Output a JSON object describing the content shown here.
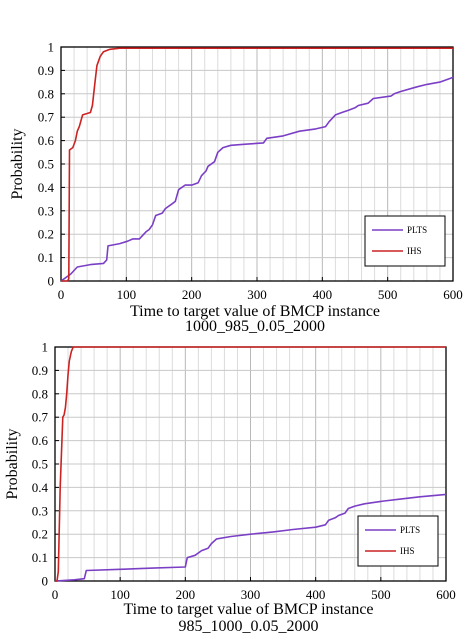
{
  "chart_data": [
    {
      "type": "line",
      "ylabel": "Probability",
      "xlabel_line1": "Time to target value of BMCP instance",
      "xlabel_line2": "1000_985_0.05_2000",
      "xlim": [
        0,
        600
      ],
      "ylim": [
        0,
        1
      ],
      "xticks": [
        0,
        100,
        200,
        300,
        400,
        500,
        600
      ],
      "yticks": [
        0,
        0.1,
        0.2,
        0.3,
        0.4,
        0.5,
        0.6,
        0.7,
        0.8,
        0.9,
        1
      ],
      "grid": true,
      "legend": "bottom-right",
      "series": [
        {
          "name": "PLTS",
          "color": "#7b3fc6",
          "points": [
            [
              0,
              0
            ],
            [
              5,
              0.01
            ],
            [
              15,
              0.03
            ],
            [
              25,
              0.06
            ],
            [
              45,
              0.07
            ],
            [
              65,
              0.075
            ],
            [
              70,
              0.09
            ],
            [
              72,
              0.15
            ],
            [
              90,
              0.16
            ],
            [
              102,
              0.17
            ],
            [
              110,
              0.18
            ],
            [
              120,
              0.18
            ],
            [
              130,
              0.21
            ],
            [
              135,
              0.22
            ],
            [
              140,
              0.24
            ],
            [
              145,
              0.28
            ],
            [
              155,
              0.29
            ],
            [
              160,
              0.31
            ],
            [
              170,
              0.33
            ],
            [
              175,
              0.34
            ],
            [
              180,
              0.39
            ],
            [
              190,
              0.41
            ],
            [
              200,
              0.41
            ],
            [
              210,
              0.42
            ],
            [
              215,
              0.45
            ],
            [
              222,
              0.47
            ],
            [
              225,
              0.49
            ],
            [
              235,
              0.51
            ],
            [
              240,
              0.55
            ],
            [
              248,
              0.57
            ],
            [
              260,
              0.58
            ],
            [
              285,
              0.585
            ],
            [
              310,
              0.59
            ],
            [
              315,
              0.61
            ],
            [
              340,
              0.62
            ],
            [
              365,
              0.64
            ],
            [
              390,
              0.65
            ],
            [
              405,
              0.66
            ],
            [
              410,
              0.68
            ],
            [
              420,
              0.71
            ],
            [
              430,
              0.72
            ],
            [
              440,
              0.73
            ],
            [
              450,
              0.74
            ],
            [
              455,
              0.75
            ],
            [
              470,
              0.76
            ],
            [
              478,
              0.78
            ],
            [
              505,
              0.79
            ],
            [
              510,
              0.8
            ],
            [
              520,
              0.81
            ],
            [
              545,
              0.83
            ],
            [
              560,
              0.84
            ],
            [
              580,
              0.85
            ],
            [
              600,
              0.87
            ]
          ]
        },
        {
          "name": "IHS",
          "color": "#cc2222",
          "points": [
            [
              0,
              0
            ],
            [
              10,
              0
            ],
            [
              12,
              0.01
            ],
            [
              13,
              0.56
            ],
            [
              18,
              0.57
            ],
            [
              22,
              0.6
            ],
            [
              25,
              0.64
            ],
            [
              28,
              0.66
            ],
            [
              33,
              0.71
            ],
            [
              45,
              0.72
            ],
            [
              48,
              0.75
            ],
            [
              52,
              0.85
            ],
            [
              55,
              0.92
            ],
            [
              60,
              0.96
            ],
            [
              65,
              0.98
            ],
            [
              75,
              0.99
            ],
            [
              90,
              0.995
            ],
            [
              600,
              0.995
            ]
          ]
        }
      ]
    },
    {
      "type": "line",
      "ylabel": "Probability",
      "xlabel_line1": "Time to target value of BMCP instance",
      "xlabel_line2": "985_1000_0.05_2000",
      "xlim": [
        0,
        600
      ],
      "ylim": [
        0,
        1
      ],
      "xticks": [
        0,
        100,
        200,
        300,
        400,
        500,
        600
      ],
      "yticks": [
        0,
        0.1,
        0.2,
        0.3,
        0.4,
        0.5,
        0.6,
        0.7,
        0.8,
        0.9,
        1
      ],
      "grid": true,
      "legend": "bottom-right",
      "series": [
        {
          "name": "PLTS",
          "color": "#7b3fc6",
          "points": [
            [
              0,
              0
            ],
            [
              30,
              0.005
            ],
            [
              45,
              0.01
            ],
            [
              48,
              0.045
            ],
            [
              100,
              0.05
            ],
            [
              150,
              0.055
            ],
            [
              200,
              0.06
            ],
            [
              203,
              0.1
            ],
            [
              215,
              0.11
            ],
            [
              225,
              0.13
            ],
            [
              235,
              0.14
            ],
            [
              240,
              0.16
            ],
            [
              248,
              0.18
            ],
            [
              270,
              0.19
            ],
            [
              300,
              0.2
            ],
            [
              335,
              0.21
            ],
            [
              365,
              0.22
            ],
            [
              400,
              0.23
            ],
            [
              415,
              0.24
            ],
            [
              420,
              0.26
            ],
            [
              430,
              0.27
            ],
            [
              435,
              0.28
            ],
            [
              445,
              0.29
            ],
            [
              450,
              0.31
            ],
            [
              460,
              0.32
            ],
            [
              475,
              0.33
            ],
            [
              500,
              0.34
            ],
            [
              530,
              0.35
            ],
            [
              560,
              0.36
            ],
            [
              600,
              0.37
            ]
          ]
        },
        {
          "name": "IHS",
          "color": "#cc2222",
          "points": [
            [
              0,
              0
            ],
            [
              3,
              0
            ],
            [
              5,
              0.04
            ],
            [
              8,
              0.4
            ],
            [
              10,
              0.55
            ],
            [
              12,
              0.7
            ],
            [
              14,
              0.71
            ],
            [
              16,
              0.74
            ],
            [
              18,
              0.8
            ],
            [
              20,
              0.88
            ],
            [
              22,
              0.94
            ],
            [
              25,
              0.98
            ],
            [
              28,
              1.0
            ],
            [
              600,
              1.0
            ]
          ]
        }
      ]
    }
  ]
}
